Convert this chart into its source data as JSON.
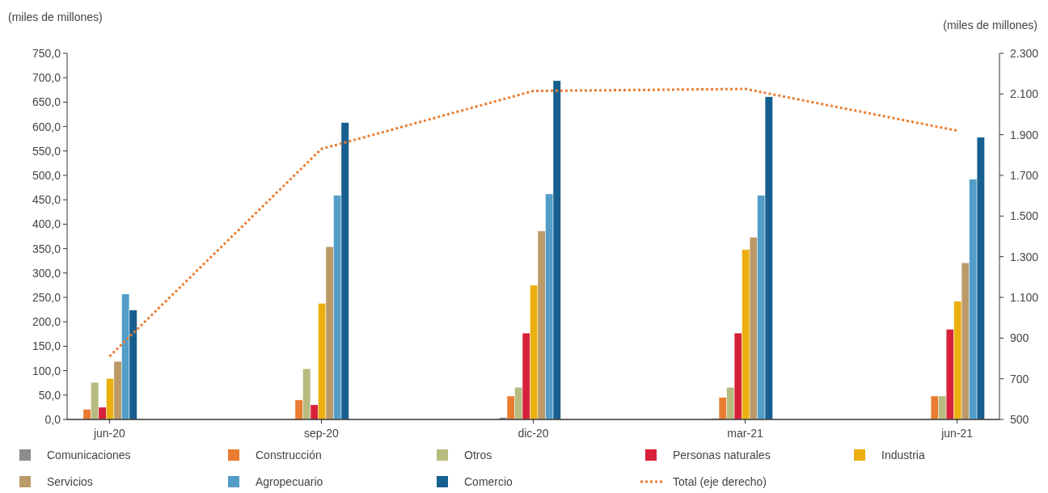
{
  "chart_data": {
    "type": "bar",
    "ylabel": "(miles de millones)",
    "y2label": "(miles de millones)",
    "categories": [
      "jun-20",
      "sep-20",
      "dic-20",
      "mar-21",
      "jun-21"
    ],
    "series": [
      {
        "name": "Comunicaciones",
        "color": "#8c8c8c",
        "values": [
          1,
          1,
          4,
          2,
          1
        ]
      },
      {
        "name": "Construcción",
        "color": "#e97c30",
        "values": [
          21,
          40,
          48,
          45,
          48
        ]
      },
      {
        "name": "Otros",
        "color": "#b8bb80",
        "values": [
          76,
          104,
          66,
          66,
          48
        ]
      },
      {
        "name": "Personas naturales",
        "color": "#d7213a",
        "values": [
          25,
          30,
          177,
          177,
          185
        ]
      },
      {
        "name": "Industria",
        "color": "#ebb010",
        "values": [
          84,
          238,
          275,
          348,
          242
        ]
      },
      {
        "name": "Servicios",
        "color": "#bb9a68",
        "values": [
          119,
          354,
          386,
          373,
          321
        ]
      },
      {
        "name": "Agropecuario",
        "color": "#529ec8",
        "values": [
          257,
          459,
          462,
          459,
          492
        ]
      },
      {
        "name": "Comercio",
        "color": "#175f8e",
        "values": [
          224,
          608,
          694,
          661,
          578
        ]
      },
      {
        "name": "Total (eje derecho)",
        "type": "line",
        "axis": "y2",
        "color": "#ed7d31",
        "line_style": "dotted",
        "values": [
          810,
          1830,
          2115,
          2125,
          1920
        ]
      }
    ],
    "ylim": [
      0,
      750
    ],
    "yticks": [
      {
        "value": 0,
        "label": "0,0"
      },
      {
        "value": 50,
        "label": "50,0"
      },
      {
        "value": 100,
        "label": "100,0"
      },
      {
        "value": 150,
        "label": "150,0"
      },
      {
        "value": 200,
        "label": "200,0"
      },
      {
        "value": 250,
        "label": "250,0"
      },
      {
        "value": 300,
        "label": "300,0"
      },
      {
        "value": 350,
        "label": "350,0"
      },
      {
        "value": 400,
        "label": "400,0"
      },
      {
        "value": 450,
        "label": "450,0"
      },
      {
        "value": 500,
        "label": "500,0"
      },
      {
        "value": 550,
        "label": "550,0"
      },
      {
        "value": 600,
        "label": "600,0"
      },
      {
        "value": 650,
        "label": "650,0"
      },
      {
        "value": 700,
        "label": "700,0"
      },
      {
        "value": 750,
        "label": "750,0"
      }
    ],
    "y2lim": [
      500,
      2300
    ],
    "y2ticks": [
      500,
      700,
      900,
      {
        "value": 1100,
        "label": "1.100"
      },
      {
        "value": 1300,
        "label": "1.300"
      },
      {
        "value": 1500,
        "label": "1.500"
      },
      {
        "value": 1700,
        "label": "1.700"
      },
      {
        "value": 1900,
        "label": "1.900"
      },
      {
        "value": 2100,
        "label": "2.100"
      },
      {
        "value": 2300,
        "label": "2.300"
      }
    ],
    "grid": false,
    "legend": "bottom",
    "marker": "none"
  }
}
